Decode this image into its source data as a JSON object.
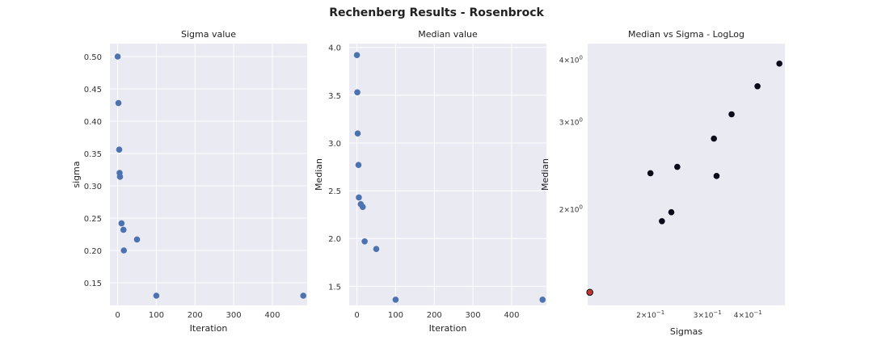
{
  "figure": {
    "suptitle": "Rechenberg Results - Rosenbrock"
  },
  "chart_data": [
    {
      "type": "scatter",
      "title": "Sigma value",
      "xlabel": "Iteration",
      "ylabel": "sigma",
      "xlim": [
        -20,
        490
      ],
      "ylim": [
        0.115,
        0.52
      ],
      "xticks": [
        0,
        100,
        200,
        300,
        400
      ],
      "xtick_labels": [
        "0",
        "100",
        "200",
        "300",
        "400"
      ],
      "yticks": [
        0.15,
        0.2,
        0.25,
        0.3,
        0.35,
        0.4,
        0.45,
        0.5
      ],
      "ytick_labels": [
        "0.15",
        "0.20",
        "0.25",
        "0.30",
        "0.35",
        "0.40",
        "0.45",
        "0.50"
      ],
      "grid": true,
      "color": "#4c72b0",
      "x": [
        0,
        2,
        4,
        5,
        6,
        10,
        15,
        16,
        50,
        100,
        480
      ],
      "y": [
        0.5,
        0.428,
        0.356,
        0.32,
        0.314,
        0.242,
        0.232,
        0.2,
        0.217,
        0.13,
        0.13
      ]
    },
    {
      "type": "scatter",
      "title": "Median value",
      "xlabel": "Iteration",
      "ylabel": "Median",
      "xlim": [
        -20,
        490
      ],
      "ylim": [
        1.3,
        4.04
      ],
      "xticks": [
        0,
        100,
        200,
        300,
        400
      ],
      "xtick_labels": [
        "0",
        "100",
        "200",
        "300",
        "400"
      ],
      "yticks": [
        1.5,
        2.0,
        2.5,
        3.0,
        3.5,
        4.0
      ],
      "ytick_labels": [
        "1.5",
        "2.0",
        "2.5",
        "3.0",
        "3.5",
        "4.0"
      ],
      "grid": true,
      "color": "#4c72b0",
      "x": [
        0,
        1,
        2,
        4,
        5,
        10,
        15,
        20,
        50,
        100,
        480
      ],
      "y": [
        3.92,
        3.53,
        3.1,
        2.77,
        2.43,
        2.36,
        2.33,
        1.97,
        1.89,
        1.36,
        1.36
      ]
    },
    {
      "type": "scatter",
      "title": "Median vs Sigma - LogLog",
      "xlabel": "Sigmas",
      "ylabel": "Median",
      "xscale": "log",
      "yscale": "log",
      "xlim": [
        0.128,
        0.52
      ],
      "ylim": [
        1.28,
        4.3
      ],
      "xticks": [
        0.2,
        0.3,
        0.4
      ],
      "xtick_labels": [
        {
          "base": "2×10",
          "exp": "−1"
        },
        {
          "base": "3×10",
          "exp": "−1"
        },
        {
          "base": "4×10",
          "exp": "−1"
        }
      ],
      "yticks": [
        2,
        3,
        4
      ],
      "ytick_labels": [
        {
          "base": "2×10",
          "exp": "0"
        },
        {
          "base": "3×10",
          "exp": "0"
        },
        {
          "base": "4×10",
          "exp": "0"
        }
      ],
      "grid": false,
      "color": "#0d0a1a",
      "highlight_color": "#c0392b",
      "x": [
        0.2,
        0.217,
        0.232,
        0.242,
        0.314,
        0.32,
        0.356,
        0.428,
        0.5
      ],
      "y": [
        2.36,
        1.89,
        1.97,
        2.43,
        2.77,
        2.33,
        3.1,
        3.53,
        3.92
      ],
      "highlight_points": [
        {
          "x": 0.13,
          "y": 1.36
        }
      ]
    }
  ]
}
